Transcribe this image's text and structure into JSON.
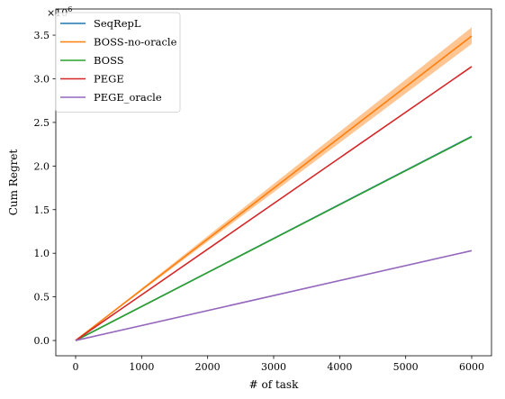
{
  "chart_data": {
    "type": "line",
    "xlabel": "# of task",
    "ylabel": "Cum Regret",
    "y_multiplier_label": "×10",
    "y_multiplier_exp": "6",
    "xlim": [
      -300,
      6300
    ],
    "ylim": [
      -0.175,
      3.8
    ],
    "xticks": [
      0,
      1000,
      2000,
      3000,
      4000,
      5000,
      6000
    ],
    "xtick_labels": [
      "0",
      "1000",
      "2000",
      "3000",
      "4000",
      "5000",
      "6000"
    ],
    "yticks": [
      0.0,
      0.5,
      1.0,
      1.5,
      2.0,
      2.5,
      3.0,
      3.5
    ],
    "ytick_labels": [
      "0.0",
      "0.5",
      "1.0",
      "1.5",
      "2.0",
      "2.5",
      "3.0",
      "3.5"
    ],
    "grid": false,
    "legend_position": "top-left",
    "series": [
      {
        "name": "SeqRepL",
        "color": "#1f77b4",
        "x": [
          0,
          6000
        ],
        "y": [
          0.0,
          2.34
        ]
      },
      {
        "name": "BOSS-no-oracle",
        "color": "#ff7f0e",
        "x": [
          0,
          6000
        ],
        "y": [
          0.0,
          3.49
        ],
        "band_lower": [
          0.0,
          3.4
        ],
        "band_upper": [
          0.0,
          3.59
        ]
      },
      {
        "name": "BOSS",
        "color": "#2ca02c",
        "x": [
          0,
          6000
        ],
        "y": [
          0.0,
          2.335
        ]
      },
      {
        "name": "PEGE",
        "color": "#d62728",
        "x": [
          0,
          6000
        ],
        "y": [
          0.0,
          3.14
        ]
      },
      {
        "name": "PEGE_oracle",
        "color": "#9467bd",
        "x": [
          0,
          6000
        ],
        "y": [
          0.0,
          1.03
        ]
      }
    ]
  }
}
